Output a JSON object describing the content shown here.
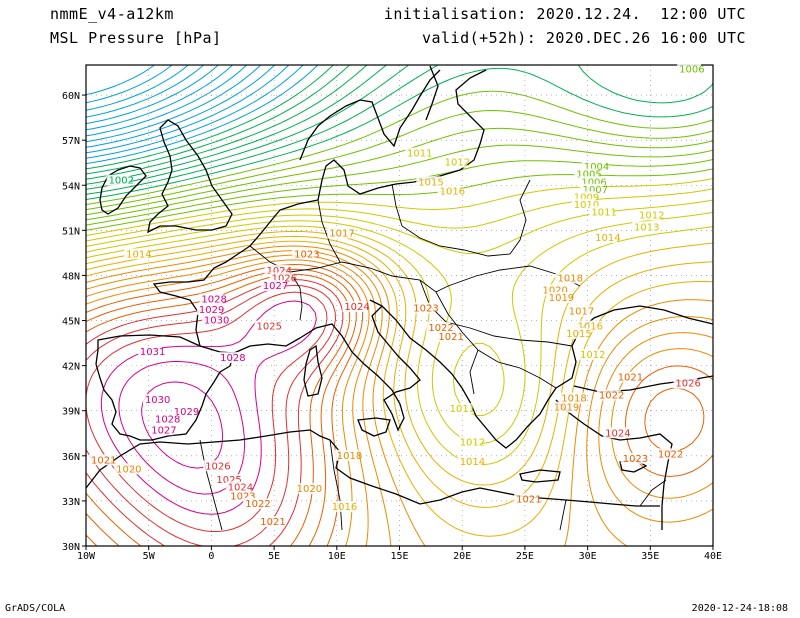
{
  "header": {
    "model": "nmmE_v4-a12km",
    "variable": "MSL Pressure [hPa]",
    "initialisation": "initialisation: 2020.12.24.  12:00 UTC",
    "valid": "valid(+52h): 2020.DEC.26 16:00 UTC"
  },
  "footer": {
    "software": "GrADS/COLA",
    "timestamp": "2020-12-24-18:08"
  },
  "map": {
    "projection": "lat-lon",
    "lon_range": [
      -10,
      40
    ],
    "lat_range": [
      30,
      62
    ],
    "lon_ticks": [
      "10W",
      "5W",
      "0",
      "5E",
      "10E",
      "15E",
      "20E",
      "25E",
      "30E",
      "35E",
      "40E"
    ],
    "lat_ticks": [
      "30N",
      "33N",
      "36N",
      "39N",
      "42N",
      "45N",
      "48N",
      "51N",
      "54N",
      "57N",
      "60N"
    ],
    "grid": "dotted"
  },
  "colors": {
    "low": "#00b000",
    "mid_low": "#d8d800",
    "mid": "#f0a000",
    "high": "#e06000",
    "very_high": "#d80080",
    "frame": "#000000",
    "coast": "#000000"
  },
  "isobar_labels": [
    {
      "text": "1002",
      "lon": -8.2,
      "lat": 54.1,
      "val": 1002
    },
    {
      "text": "1011",
      "lon": 15.6,
      "lat": 55.9,
      "val": 1011
    },
    {
      "text": "1012",
      "lon": 18.6,
      "lat": 55.3,
      "val": 1012
    },
    {
      "text": "1015",
      "lon": 16.5,
      "lat": 54.0,
      "val": 1015
    },
    {
      "text": "1016",
      "lon": 18.2,
      "lat": 53.4,
      "val": 1016
    },
    {
      "text": "1017",
      "lon": 9.4,
      "lat": 50.6,
      "val": 1017
    },
    {
      "text": "1014",
      "lon": -6.8,
      "lat": 49.2,
      "val": 1014
    },
    {
      "text": "1023",
      "lon": 6.6,
      "lat": 49.2,
      "val": 1023
    },
    {
      "text": "1024",
      "lon": 4.4,
      "lat": 48.1,
      "val": 1024
    },
    {
      "text": "1026",
      "lon": 4.8,
      "lat": 47.6,
      "val": 1026
    },
    {
      "text": "1027",
      "lon": 4.1,
      "lat": 47.1,
      "val": 1027
    },
    {
      "text": "1028",
      "lon": -0.8,
      "lat": 46.2,
      "val": 1028
    },
    {
      "text": "1029",
      "lon": -1.0,
      "lat": 45.5,
      "val": 1029
    },
    {
      "text": "1030",
      "lon": -0.6,
      "lat": 44.8,
      "val": 1030
    },
    {
      "text": "1025",
      "lon": 3.6,
      "lat": 44.4,
      "val": 1025
    },
    {
      "text": "1024",
      "lon": 10.6,
      "lat": 45.7,
      "val": 1024
    },
    {
      "text": "1023",
      "lon": 16.1,
      "lat": 45.6,
      "val": 1023
    },
    {
      "text": "1022",
      "lon": 17.3,
      "lat": 44.3,
      "val": 1022
    },
    {
      "text": "1021",
      "lon": 18.1,
      "lat": 43.7,
      "val": 1021
    },
    {
      "text": "1018",
      "lon": 27.6,
      "lat": 47.6,
      "val": 1018
    },
    {
      "text": "1020",
      "lon": 26.4,
      "lat": 46.8,
      "val": 1020
    },
    {
      "text": "1019",
      "lon": 26.9,
      "lat": 46.3,
      "val": 1019
    },
    {
      "text": "1017",
      "lon": 28.5,
      "lat": 45.4,
      "val": 1017
    },
    {
      "text": "1016",
      "lon": 29.2,
      "lat": 44.4,
      "val": 1016
    },
    {
      "text": "1015",
      "lon": 28.3,
      "lat": 43.9,
      "val": 1015
    },
    {
      "text": "1012",
      "lon": 29.4,
      "lat": 42.5,
      "val": 1012
    },
    {
      "text": "1031",
      "lon": -5.7,
      "lat": 42.7,
      "val": 1031
    },
    {
      "text": "1028",
      "lon": 0.7,
      "lat": 42.3,
      "val": 1028
    },
    {
      "text": "1030",
      "lon": -5.3,
      "lat": 39.5,
      "val": 1030
    },
    {
      "text": "1029",
      "lon": -3.0,
      "lat": 38.7,
      "val": 1029
    },
    {
      "text": "1028",
      "lon": -4.5,
      "lat": 38.2,
      "val": 1028
    },
    {
      "text": "1027",
      "lon": -4.8,
      "lat": 37.5,
      "val": 1027
    },
    {
      "text": "1011",
      "lon": 19.0,
      "lat": 38.9,
      "val": 1011
    },
    {
      "text": "1012",
      "lon": 19.8,
      "lat": 36.7,
      "val": 1012
    },
    {
      "text": "1014",
      "lon": 19.8,
      "lat": 35.4,
      "val": 1014
    },
    {
      "text": "1018",
      "lon": 10.0,
      "lat": 35.8,
      "val": 1018
    },
    {
      "text": "1021",
      "lon": -9.6,
      "lat": 35.5,
      "val": 1021
    },
    {
      "text": "1020",
      "lon": -7.6,
      "lat": 34.9,
      "val": 1020
    },
    {
      "text": "1026",
      "lon": -0.5,
      "lat": 35.1,
      "val": 1026
    },
    {
      "text": "1025",
      "lon": 0.4,
      "lat": 34.2,
      "val": 1025
    },
    {
      "text": "1024",
      "lon": 1.3,
      "lat": 33.7,
      "val": 1024
    },
    {
      "text": "1023",
      "lon": 1.5,
      "lat": 33.1,
      "val": 1023
    },
    {
      "text": "1022",
      "lon": 2.7,
      "lat": 32.6,
      "val": 1022
    },
    {
      "text": "1021",
      "lon": 3.9,
      "lat": 31.4,
      "val": 1021
    },
    {
      "text": "1020",
      "lon": 6.8,
      "lat": 33.6,
      "val": 1020
    },
    {
      "text": "1016",
      "lon": 9.6,
      "lat": 32.4,
      "val": 1016
    },
    {
      "text": "1021",
      "lon": 24.3,
      "lat": 32.9,
      "val": 1021
    },
    {
      "text": "1018",
      "lon": 27.9,
      "lat": 39.6,
      "val": 1018
    },
    {
      "text": "1019",
      "lon": 27.3,
      "lat": 39.0,
      "val": 1019
    },
    {
      "text": "1021",
      "lon": 32.4,
      "lat": 41.0,
      "val": 1021
    },
    {
      "text": "1022",
      "lon": 30.9,
      "lat": 39.8,
      "val": 1022
    },
    {
      "text": "1024",
      "lon": 31.4,
      "lat": 37.3,
      "val": 1024
    },
    {
      "text": "1023",
      "lon": 32.8,
      "lat": 35.6,
      "val": 1023
    },
    {
      "text": "1022",
      "lon": 35.6,
      "lat": 35.9,
      "val": 1022
    },
    {
      "text": "1026",
      "lon": 37.0,
      "lat": 40.6,
      "val": 1026
    },
    {
      "text": "1004",
      "lon": 29.7,
      "lat": 55.0,
      "val": 1004
    },
    {
      "text": "1005",
      "lon": 29.1,
      "lat": 54.5,
      "val": 1005
    },
    {
      "text": "1006",
      "lon": 29.5,
      "lat": 54.0,
      "val": 1006
    },
    {
      "text": "1007",
      "lon": 29.6,
      "lat": 53.5,
      "val": 1007
    },
    {
      "text": "1009",
      "lon": 28.9,
      "lat": 53.0,
      "val": 1009
    },
    {
      "text": "1010",
      "lon": 28.9,
      "lat": 52.5,
      "val": 1010
    },
    {
      "text": "1011",
      "lon": 30.3,
      "lat": 52.0,
      "val": 1011
    },
    {
      "text": "1012",
      "lon": 34.1,
      "lat": 51.8,
      "val": 1012
    },
    {
      "text": "1013",
      "lon": 33.7,
      "lat": 51.0,
      "val": 1013
    },
    {
      "text": "1014",
      "lon": 30.6,
      "lat": 50.3,
      "val": 1014
    },
    {
      "text": "1006",
      "lon": 37.3,
      "lat": 61.5,
      "val": 1006
    }
  ]
}
